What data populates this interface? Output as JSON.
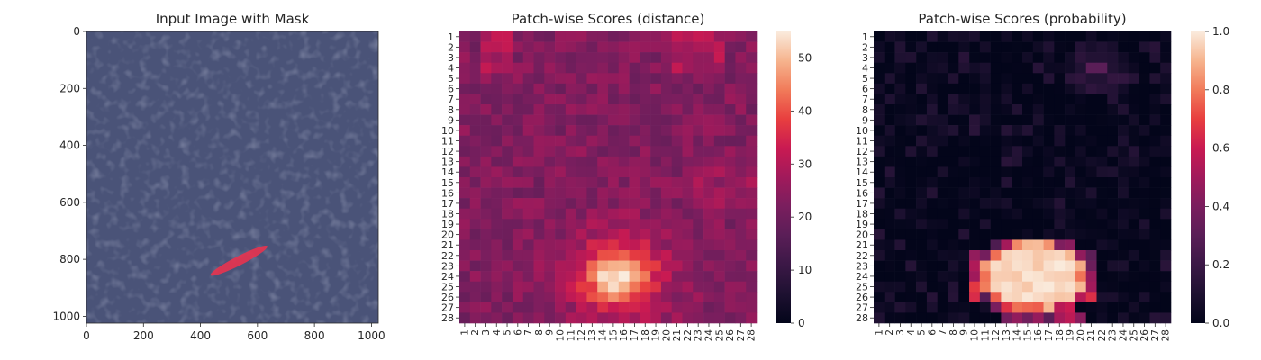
{
  "chart_data": [
    {
      "type": "image",
      "title": "Input Image with Mask",
      "xlim": [
        0,
        1024
      ],
      "ylim": [
        1024,
        0
      ],
      "xticks": [
        0,
        200,
        400,
        600,
        800,
        1000
      ],
      "yticks": [
        0,
        200,
        400,
        600,
        800,
        1000
      ],
      "image_color": "#4a5378",
      "mask_color": "#e8334f",
      "mask_region": {
        "center_x": 535,
        "center_y": 805,
        "half_length": 112,
        "half_width": 16,
        "angle_deg": -27
      }
    },
    {
      "type": "heatmap",
      "title": "Patch-wise Scores (distance)",
      "colormap": "rocket",
      "colorbar": {
        "min": 0,
        "max": 55,
        "ticks": [
          0,
          10,
          20,
          30,
          40,
          50
        ]
      },
      "rows": 28,
      "cols": 28,
      "row_labels": [
        "1",
        "2",
        "3",
        "4",
        "5",
        "6",
        "7",
        "8",
        "9",
        "10",
        "11",
        "12",
        "13",
        "14",
        "15",
        "16",
        "17",
        "18",
        "19",
        "20",
        "21",
        "22",
        "23",
        "24",
        "25",
        "26",
        "27",
        "28"
      ],
      "col_labels": [
        "1",
        "2",
        "3",
        "4",
        "5",
        "6",
        "7",
        "8",
        "9",
        "10",
        "11",
        "12",
        "13",
        "14",
        "15",
        "16",
        "17",
        "18",
        "19",
        "20",
        "21",
        "22",
        "23",
        "24",
        "25",
        "26",
        "27",
        "28"
      ],
      "model": {
        "background": 23,
        "hotspot": {
          "row": 24,
          "col": 15.5,
          "peak": 55,
          "sigma_row": 1.7,
          "sigma_col": 2.2
        },
        "halo": {
          "peak": 12,
          "sigma": 3.4
        }
      }
    },
    {
      "type": "heatmap",
      "title": "Patch-wise Scores (probability)",
      "colormap": "rocket",
      "colorbar": {
        "min": 0.0,
        "max": 1.0,
        "ticks": [
          "0.0",
          "0.2",
          "0.4",
          "0.6",
          "0.8",
          "1.0"
        ]
      },
      "rows": 28,
      "cols": 28,
      "row_labels": [
        "1",
        "2",
        "3",
        "4",
        "5",
        "6",
        "7",
        "8",
        "9",
        "10",
        "11",
        "12",
        "13",
        "14",
        "15",
        "16",
        "17",
        "18",
        "19",
        "20",
        "21",
        "22",
        "23",
        "24",
        "25",
        "26",
        "27",
        "28"
      ],
      "col_labels": [
        "1",
        "2",
        "3",
        "4",
        "5",
        "6",
        "7",
        "8",
        "9",
        "10",
        "11",
        "12",
        "13",
        "14",
        "15",
        "16",
        "17",
        "18",
        "19",
        "20",
        "21",
        "22",
        "23",
        "24",
        "25",
        "26",
        "27",
        "28"
      ],
      "model": {
        "hotspot": {
          "row": 24,
          "col": 15.5,
          "radius_row": 3.2,
          "radius_col": 5.2
        },
        "secondary": {
          "row": 4,
          "col": 21.5,
          "peak": 0.45
        }
      }
    }
  ]
}
